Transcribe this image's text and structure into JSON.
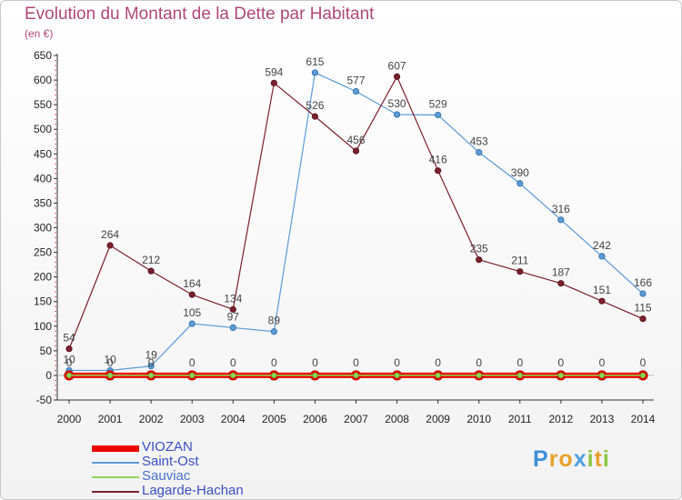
{
  "title": "Evolution du Montant de la Dette par Habitant",
  "subtitle": "(en €)",
  "brand": {
    "letters": [
      {
        "ch": "P",
        "color": "#3d8fd6"
      },
      {
        "ch": "r",
        "color": "#e8a12a"
      },
      {
        "ch": "o",
        "color": "#e8a12a"
      },
      {
        "ch": "x",
        "color": "#4f9fe0"
      },
      {
        "ch": "i",
        "color": "#8bc53f"
      },
      {
        "ch": "t",
        "color": "#e8a12a"
      },
      {
        "ch": "i",
        "color": "#8bc53f"
      }
    ]
  },
  "chart_data": {
    "type": "line",
    "x": [
      "2000",
      "2001",
      "2002",
      "2003",
      "2004",
      "2005",
      "2006",
      "2007",
      "2008",
      "2009",
      "2010",
      "2011",
      "2012",
      "2013",
      "2014"
    ],
    "ylim": [
      -50,
      650
    ],
    "yticks": [
      -50,
      0,
      50,
      100,
      150,
      200,
      250,
      300,
      350,
      400,
      450,
      500,
      550,
      600,
      650
    ],
    "grid": false,
    "legend_position": "bottom-left",
    "series": [
      {
        "name": "VIOZAN",
        "color": "#ee0000",
        "values": [
          0,
          0,
          0,
          0,
          0,
          0,
          0,
          0,
          0,
          0,
          0,
          0,
          0,
          0,
          0
        ],
        "labels": [
          "",
          "",
          "",
          "",
          "",
          "",
          "",
          "",
          "",
          "",
          "",
          "",
          "",
          "",
          ""
        ]
      },
      {
        "name": "Saint-Ost",
        "color": "#5b9bd5",
        "values": [
          10,
          10,
          19,
          105,
          97,
          89,
          615,
          577,
          530,
          529,
          453,
          390,
          316,
          242,
          166
        ],
        "labels": [
          "10",
          "10",
          "19",
          "105",
          "97",
          "89",
          "615",
          "577",
          "530",
          "529",
          "453",
          "390",
          "316",
          "242",
          "166"
        ]
      },
      {
        "name": "Sauviac",
        "color": "#8ed65a",
        "values": [
          0,
          0,
          0,
          0,
          0,
          0,
          0,
          0,
          0,
          0,
          0,
          0,
          0,
          0,
          0
        ],
        "labels": [
          "0",
          "0",
          "0",
          "0",
          "0",
          "0",
          "0",
          "0",
          "0",
          "0",
          "0",
          "0",
          "0",
          "0",
          "0"
        ]
      },
      {
        "name": "Lagarde-Hachan",
        "color": "#7a1f2b",
        "values": [
          54,
          264,
          212,
          164,
          134,
          594,
          526,
          456,
          607,
          416,
          235,
          211,
          187,
          151,
          115
        ],
        "labels": [
          "54",
          "264",
          "212",
          "164",
          "134",
          "594",
          "526",
          "456",
          "607",
          "416",
          "235",
          "211",
          "187",
          "151",
          "115"
        ]
      }
    ]
  }
}
